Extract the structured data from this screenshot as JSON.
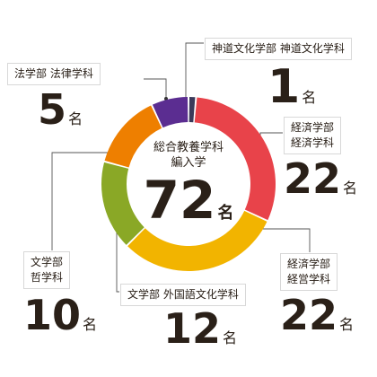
{
  "chart_data": {
    "type": "pie",
    "title": "総合教養学科 編入学",
    "total": 72,
    "unit": "名",
    "slices": [
      {
        "label_line1": "神道文化学部",
        "label_line2": "神道文化学科",
        "value": 1,
        "color": "#3a3a5a"
      },
      {
        "label_line1": "経済学部",
        "label_line2": "経済学科",
        "value": 22,
        "color": "#e8434a"
      },
      {
        "label_line1": "経済学部",
        "label_line2": "経営学科",
        "value": 22,
        "color": "#f2b400"
      },
      {
        "label_line1": "文学部",
        "label_line2": "外国語文化学科",
        "value": 12,
        "color": "#8aa826"
      },
      {
        "label_line1": "文学部",
        "label_line2": "哲学科",
        "value": 10,
        "color": "#ee7f00"
      },
      {
        "label_line1": "法学部",
        "label_line2": "法律学科",
        "value": 5,
        "color": "#5b2d91"
      }
    ]
  }
}
